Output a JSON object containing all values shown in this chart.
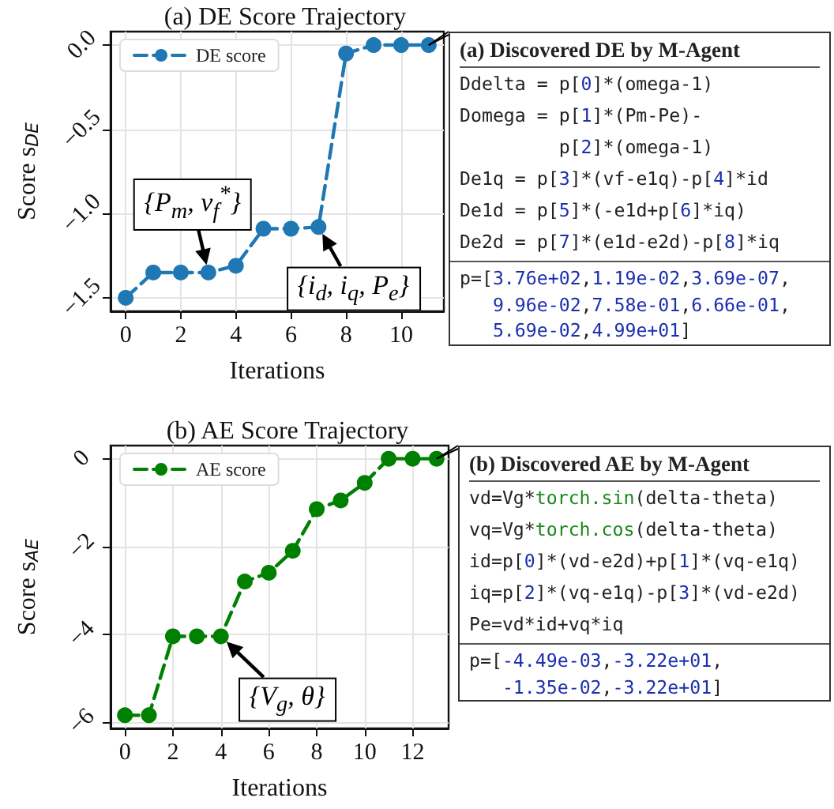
{
  "chart_data": [
    {
      "type": "line",
      "title": "(a) DE Score Trajectory",
      "xlabel": "Iterations",
      "ylabel": "Score s$_{DE}$",
      "x": [
        0,
        1,
        2,
        3,
        4,
        5,
        6,
        7,
        8,
        9,
        10,
        11
      ],
      "series": [
        {
          "name": "DE score",
          "color": "#1f77b4",
          "values": [
            -1.5,
            -1.35,
            -1.35,
            -1.35,
            -1.31,
            -1.09,
            -1.09,
            -1.08,
            -0.05,
            0,
            0,
            0
          ]
        }
      ],
      "xlim": [
        -0.55,
        11.55
      ],
      "xticks": [
        0,
        2,
        4,
        6,
        8,
        10
      ],
      "ylim": [
        -1.58,
        0.08
      ],
      "yticks": [
        {
          "value": -1.5,
          "label": "−1.5"
        },
        {
          "value": -1,
          "label": "−1.0"
        },
        {
          "value": -0.5,
          "label": "−0.5"
        },
        {
          "value": 0,
          "label": "0.0"
        }
      ],
      "grid": true,
      "legend": "top left",
      "marker": "circle",
      "line_style": "dashed",
      "annotations": [
        {
          "text": "{P$_{m}$, v$_{f}$$^{*}$}",
          "x": 3,
          "y": -1.35
        },
        {
          "text": "{i$_{d}$, i$_{q}$, P$_{e}$}",
          "x": 7,
          "y": -1.08
        }
      ]
    },
    {
      "type": "other",
      "title": "(a) Discovered DE by M-Agent",
      "annotations": [
        "Ddelta = p[0]*(omega-1)",
        "Domega = p[1]*(Pm-Pe)-",
        "         p[2]*(omega-1)",
        "De1q = p[3]*(vf-e1q)-p[4]*id",
        "De1d = p[5]*(-e1d+p[6]*iq)",
        "De2d = p[7]*(e1d-e2d)-p[8]*iq"
      ]
    },
    {
      "type": "other",
      "annotations": [
        "p=[3.76e+02,1.19e-02,3.69e-07,",
        "   9.96e-02,7.58e-01,6.66e-01,",
        "   5.69e-02,4.99e+01]"
      ]
    },
    {
      "type": "line",
      "title": "(b) AE Score Trajectory",
      "xlabel": "Iterations",
      "ylabel": "Score s$_{AE}$",
      "x": [
        0,
        1,
        2,
        3,
        4,
        5,
        6,
        7,
        8,
        9,
        10,
        11,
        12,
        13
      ],
      "series": [
        {
          "name": "AE score",
          "color": "#008000",
          "values": [
            -5.85,
            -5.85,
            -4.05,
            -4.05,
            -4.05,
            -2.8,
            -2.6,
            -2.1,
            -1.15,
            -0.95,
            -0.55,
            0,
            0,
            0
          ]
        }
      ],
      "xlim": [
        -0.6,
        13.5
      ],
      "xticks": [
        0,
        2,
        4,
        6,
        8,
        10,
        12
      ],
      "ylim": [
        -6.15,
        0.3
      ],
      "yticks": [
        {
          "value": -6,
          "label": "−6"
        },
        {
          "value": -4,
          "label": "−4"
        },
        {
          "value": -2,
          "label": "−2"
        },
        {
          "value": 0,
          "label": "0"
        }
      ],
      "grid": true,
      "legend": "top left",
      "marker": "circle",
      "line_style": "dashed",
      "annotations": [
        {
          "text": "{V$_{g}$, θ}",
          "x": 4,
          "y": -4.05
        }
      ]
    },
    {
      "type": "other",
      "title": "(b) Discovered AE by M-Agent",
      "annotations": [
        "vd=Vg*torch.sin(delta-theta)",
        "vq=Vg*torch.cos(delta-theta)",
        "id=p[0]*(vd-e2d)+p[1]*(vq-e1q)",
        "iq=p[2]*(vq-e1q)-p[3]*(vd-e2d)",
        "Pe=vd*id+vq*iq"
      ]
    },
    {
      "type": "other",
      "annotations": [
        "p=[-4.49e-03,-3.22e+01,",
        "   -1.35e-02,-3.22e+01]"
      ]
    }
  ]
}
